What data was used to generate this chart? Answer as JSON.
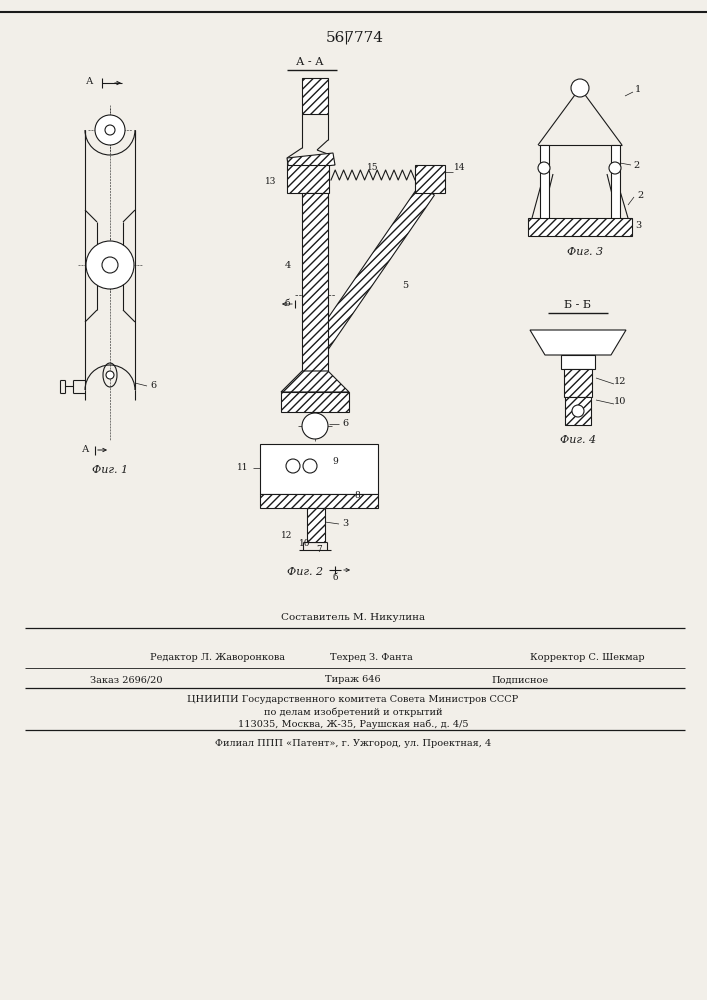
{
  "title": "567774",
  "bg_color": "#f2efe9",
  "line_color": "#1a1a1a",
  "fig_labels": [
    "Фиг. 1",
    "Фиг. 2",
    "Фиг. 3",
    "Фиг. 4"
  ],
  "footer_composer": "Составитель М. Никулина",
  "footer_editor": "Редактор Л. Жаворонкова",
  "footer_tech": "Техред З. Фанта",
  "footer_corrector": "Корректор С. Шекмар",
  "footer_order": "Заказ 2696/20",
  "footer_tirazh": "Тираж 646",
  "footer_podp": "Подписное",
  "footer_org1": "ЦНИИПИ Государственного комитета Совета Министров СССР",
  "footer_org2": "по делам изобретений и открытий",
  "footer_addr": "113035, Москва, Ж-35, Раушская наб., д. 4/5",
  "footer_filial": "Филиал ППП «Патент», г. Ужгород, ул. Проектная, 4"
}
